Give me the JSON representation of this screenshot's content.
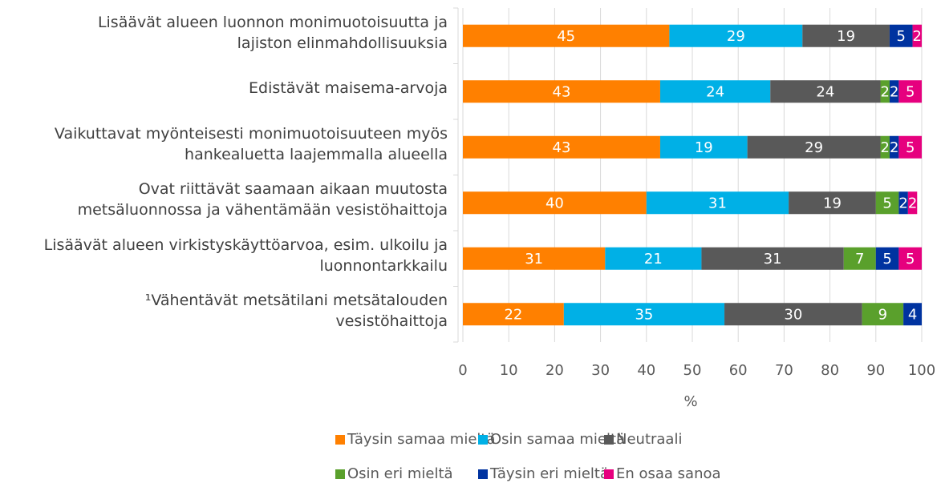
{
  "chart_data": {
    "type": "stacked-barh",
    "categories": [
      "Lisäävät alueen luonnon monimuotoisuutta ja\nlajiston elinmahdollisuuksia",
      "Edistävät maisema-arvoja",
      "Vaikuttavat myönteisesti monimuotoisuuteen myös\nhankealuetta laajemmalla alueella",
      "Ovat riittävät saamaan aikaan muutosta\nmetsäluonnossa ja vähentämään vesistöhaittoja",
      "Lisäävät alueen virkistyskäyttöarvoa, esim. ulkoilu ja\nluonnontarkkailu",
      "¹Vähentävät metsätilani metsätalouden\nvesistöhaittoja"
    ],
    "series": [
      {
        "name": "Täysin samaa mieltä",
        "color": "#ff8000",
        "values": [
          45,
          43,
          43,
          40,
          31,
          22
        ]
      },
      {
        "name": "Osin samaa mieltä",
        "color": "#00b0e6",
        "values": [
          29,
          24,
          19,
          31,
          21,
          35
        ]
      },
      {
        "name": "Neutraali",
        "color": "#595959",
        "values": [
          19,
          24,
          29,
          19,
          31,
          30
        ]
      },
      {
        "name": "Osin eri mieltä",
        "color": "#5aa02c",
        "values": [
          null,
          2,
          2,
          5,
          7,
          9
        ]
      },
      {
        "name": "Täysin eri mieltä",
        "color": "#0033a0",
        "values": [
          5,
          2,
          2,
          2,
          5,
          4
        ]
      },
      {
        "name": "En osaa sanoa",
        "color": "#e6007e",
        "values": [
          2,
          5,
          5,
          2,
          5,
          null
        ]
      }
    ],
    "xlabel": "%",
    "xlim": [
      0,
      100
    ],
    "xticks": [
      0,
      10,
      20,
      30,
      40,
      50,
      60,
      70,
      80,
      90,
      100
    ],
    "grid": true
  }
}
